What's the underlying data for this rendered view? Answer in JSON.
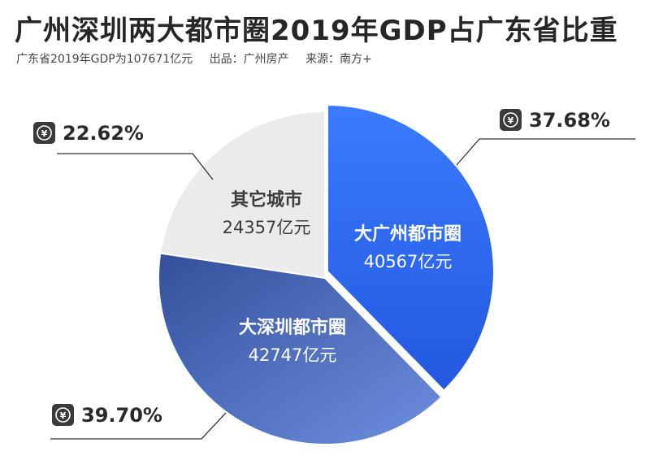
{
  "title": "广州深圳两大都市圈2019年GDP占广东省比重",
  "subtitle": {
    "total": "广东省2019年GDP为107671亿元",
    "producer": "出品：广州房产",
    "source": "来源：南方+"
  },
  "colors": {
    "guangzhou": "#2f6bf5",
    "shenzhen": "#3d5ea8",
    "others": "#ebebeb",
    "leader": "#333333",
    "badge": "#3a3a3a"
  },
  "icon": {
    "badge": "yen-icon",
    "glyph": "¥"
  },
  "chart_data": {
    "type": "pie",
    "title": "广州深圳两大都市圈2019年GDP占广东省比重",
    "start_angle_deg": 0,
    "direction": "clockwise",
    "unit": "亿元",
    "slices": [
      {
        "key": "guangzhou",
        "name": "大广州都市圈",
        "value": 40567,
        "value_label": "40567亿元",
        "percent_label": "37.68%",
        "percent": 37.68
      },
      {
        "key": "shenzhen",
        "name": "大深圳都市圈",
        "value": 42747,
        "value_label": "42747亿元",
        "percent_label": "39.70%",
        "percent": 39.7
      },
      {
        "key": "others",
        "name": "其它城市",
        "value": 24357,
        "value_label": "24357亿元",
        "percent_label": "22.62%",
        "percent": 22.62
      }
    ]
  }
}
